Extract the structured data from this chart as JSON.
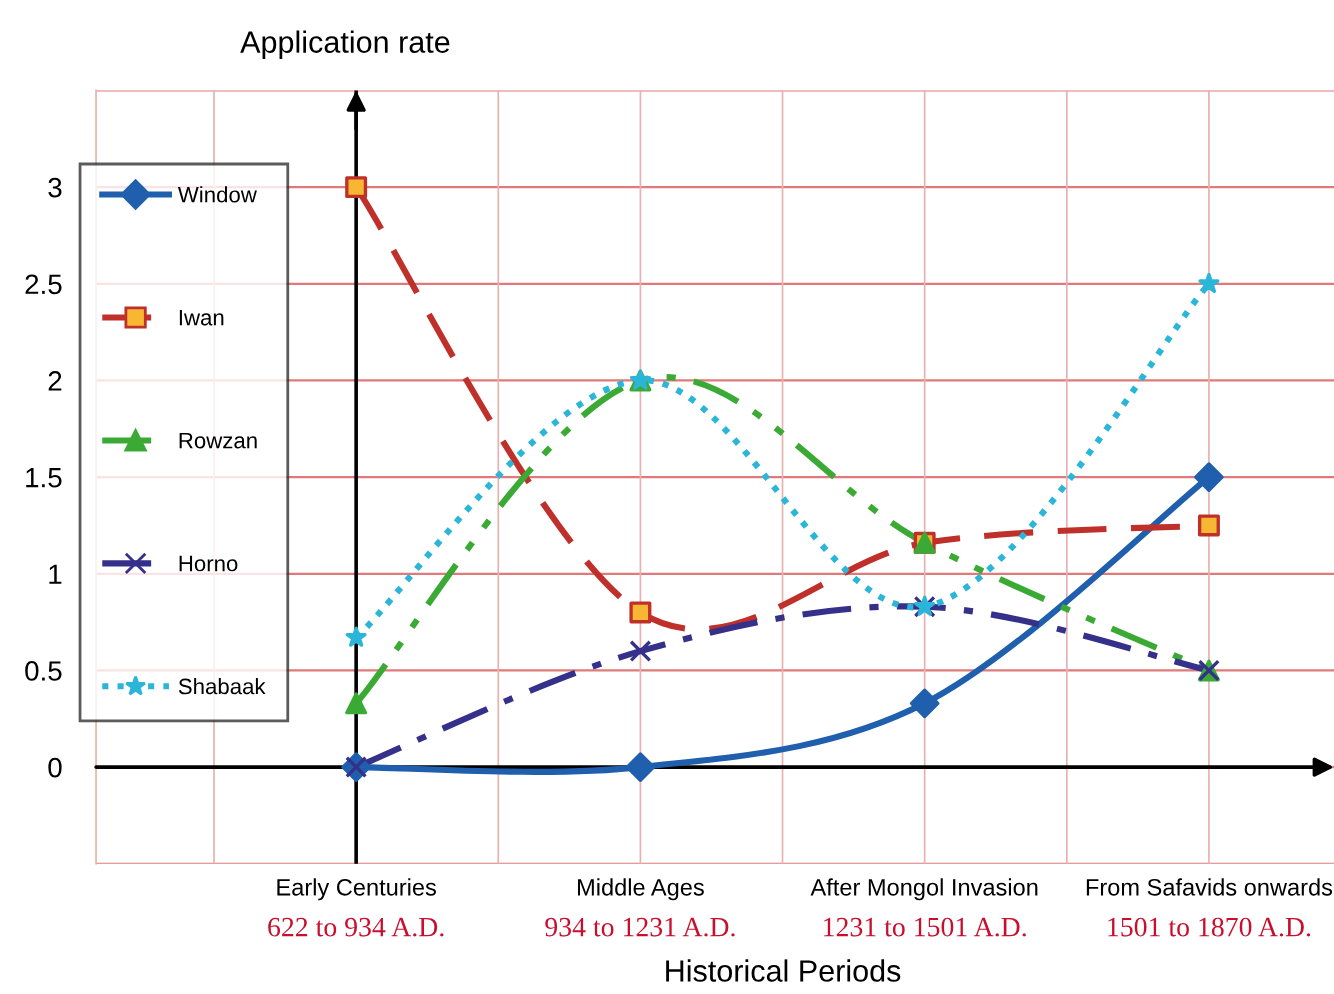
{
  "chart_data": {
    "type": "line",
    "ylabel": "Application rate",
    "xlabel": "Historical Periods",
    "categories": [
      "Early Centuries",
      "Middle Ages",
      "After Mongol Invasion",
      "From Safavids onwards"
    ],
    "annotations": [
      "622 to 934 A.D.",
      "934 to 1231 A.D.",
      "1231 to 1501 A.D.",
      "1501 to 1870 A.D."
    ],
    "series": [
      {
        "name": "Window",
        "color": "#1f5fad",
        "marker": "diamond",
        "line_style": "solid",
        "values": [
          0,
          0,
          0.33,
          1.5
        ]
      },
      {
        "name": "Iwan",
        "color": "#c0302b",
        "marker": "square",
        "line_style": "dashed",
        "values": [
          3,
          0.8,
          1.16,
          1.25
        ]
      },
      {
        "name": "Rowzan",
        "color": "#3aaa35",
        "marker": "triangle",
        "line_style": "dashdotdot",
        "values": [
          0.33,
          2,
          1.16,
          0.5
        ]
      },
      {
        "name": "Horno",
        "color": "#35308a",
        "marker": "cross",
        "line_style": "dashdot",
        "values": [
          0,
          0.6,
          0.83,
          0.5
        ]
      },
      {
        "name": "Shabaak",
        "color": "#2bb5d8",
        "marker": "star",
        "line_style": "dotted",
        "values": [
          0.67,
          2,
          0.83,
          2.5
        ]
      }
    ],
    "ylim": [
      -0.5,
      3.5
    ],
    "yticks": [
      {
        "value": -0.5,
        "label": null
      },
      0,
      0.5,
      1,
      1.5,
      2,
      2.5,
      3,
      {
        "value": 3.5,
        "label": null
      }
    ],
    "ref_lines": [
      {
        "axis": "x",
        "value": "Early Centuries",
        "color": "#000000"
      }
    ],
    "grid": true,
    "legend": "left"
  }
}
